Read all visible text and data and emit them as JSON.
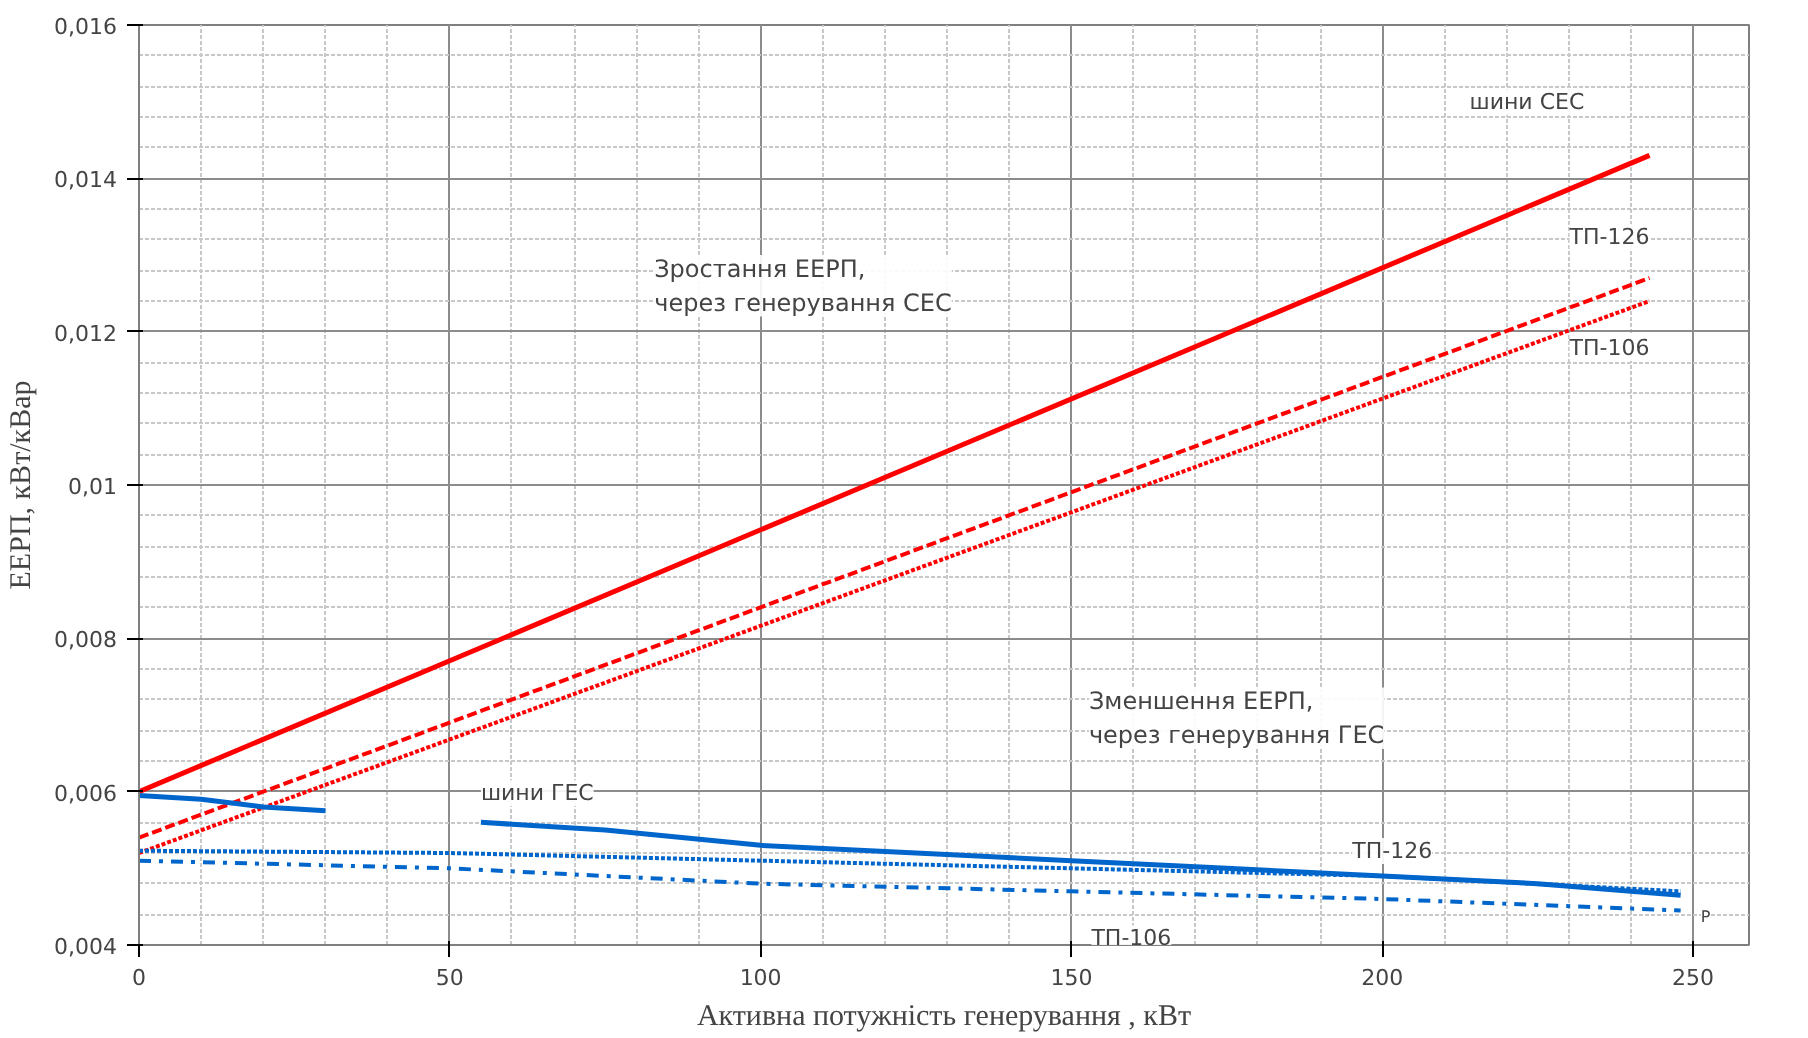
{
  "chart_data": {
    "type": "line",
    "xlabel": "Активна потужність генерування , кВт",
    "ylabel": "ЕЕРП, кВт/кВар",
    "xlim": [
      0,
      259
    ],
    "xticks": [
      0,
      50,
      100,
      150,
      200,
      250
    ],
    "ylim": [
      0.004,
      0.016
    ],
    "yticks": [
      {
        "value": 0.004,
        "label": "0,004"
      },
      {
        "value": 0.006,
        "label": "0,006"
      },
      {
        "value": 0.008,
        "label": "0,008"
      },
      {
        "value": 0.01,
        "label": "0,01"
      },
      {
        "value": 0.012,
        "label": "0,012"
      },
      {
        "value": 0.014,
        "label": "0,014"
      },
      {
        "value": 0.016,
        "label": "0,016"
      }
    ],
    "grid": true,
    "series": [
      {
        "name": "шини СЕС",
        "color": "#ff0000",
        "line_style": "solid",
        "x": [
          0,
          243
        ],
        "values": [
          0.006,
          0.0143
        ]
      },
      {
        "name": "ТП-126",
        "color": "#ff0000",
        "line_style": "dashed",
        "x": [
          0,
          243
        ],
        "values": [
          0.0054,
          0.0127
        ]
      },
      {
        "name": "ТП-106",
        "color": "#ff0000",
        "line_style": "dotted",
        "x": [
          0,
          243
        ],
        "values": [
          0.0052,
          0.0124
        ]
      },
      {
        "name": "шини ГЕС",
        "color": "#0066cc",
        "line_style": "solid",
        "x": [
          0,
          10,
          20,
          30,
          40,
          55,
          75,
          100,
          125,
          150,
          175,
          200,
          225,
          248
        ],
        "values": [
          0.00595,
          0.0059,
          0.0058,
          0.00575,
          null,
          0.0056,
          0.0055,
          0.0053,
          0.0052,
          0.0051,
          0.005,
          0.0049,
          0.0048,
          0.00465
        ]
      },
      {
        "name": "ТП-126",
        "color": "#0066cc",
        "line_style": "dotted",
        "x": [
          0,
          50,
          100,
          150,
          200,
          248
        ],
        "values": [
          0.00523,
          0.0052,
          0.0051,
          0.005,
          0.0049,
          0.0047
        ]
      },
      {
        "name": "ТП-106",
        "color": "#0066cc",
        "line_style": "dashdot",
        "x": [
          0,
          50,
          100,
          150,
          200,
          248
        ],
        "values": [
          0.0051,
          0.005,
          0.0048,
          0.0047,
          0.0046,
          0.00445
        ]
      }
    ],
    "annotations": [
      "Зростання ЕЕРП,\nчерез генерування СЕС",
      "Зменшення ЕЕРП,\nчерез генерування ГЕС",
      "Р"
    ]
  }
}
